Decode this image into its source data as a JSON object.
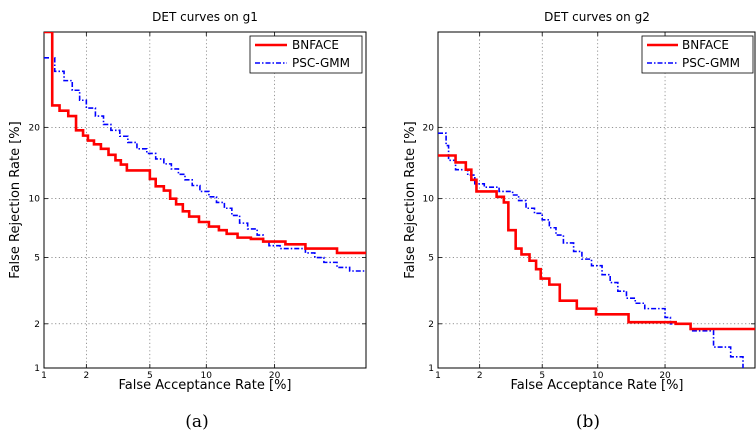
{
  "chart_data": [
    {
      "type": "line",
      "title": "DET curves on g1",
      "xlabel": "False Acceptance Rate [%]",
      "ylabel": "False Rejection Rate [%]",
      "xscale": "probit",
      "yscale": "probit",
      "xlim": [
        1,
        40
      ],
      "ylim": [
        1,
        40
      ],
      "xticks": [
        1,
        2,
        5,
        10,
        20
      ],
      "xtick_labels": [
        "1",
        "2",
        "5",
        "10",
        "20"
      ],
      "yticks": [
        1,
        2,
        5,
        10,
        20
      ],
      "ytick_labels": [
        "1",
        "2",
        "5",
        "10",
        "20"
      ],
      "grid": true,
      "legend_position": "top-right",
      "caption": "(a)",
      "series": [
        {
          "name": "BNFACE",
          "color": "#ff0000",
          "style": "solid",
          "points": [
            [
              1,
              40
            ],
            [
              1.15,
              40
            ],
            [
              1.15,
              24
            ],
            [
              1.3,
              24
            ],
            [
              1.3,
              23
            ],
            [
              1.5,
              23
            ],
            [
              1.5,
              22
            ],
            [
              1.7,
              22
            ],
            [
              1.7,
              19.5
            ],
            [
              1.9,
              19.5
            ],
            [
              1.9,
              18.6
            ],
            [
              2.05,
              18.6
            ],
            [
              2.05,
              17.8
            ],
            [
              2.25,
              17.8
            ],
            [
              2.25,
              17.2
            ],
            [
              2.5,
              17.2
            ],
            [
              2.5,
              16.5
            ],
            [
              2.8,
              16.5
            ],
            [
              2.8,
              15.6
            ],
            [
              3.1,
              15.6
            ],
            [
              3.1,
              14.8
            ],
            [
              3.35,
              14.8
            ],
            [
              3.35,
              14.2
            ],
            [
              3.65,
              14.2
            ],
            [
              3.65,
              13.4
            ],
            [
              4.1,
              13.4
            ],
            [
              4.1,
              13.4
            ],
            [
              5.0,
              13.4
            ],
            [
              5.0,
              12.3
            ],
            [
              5.4,
              12.3
            ],
            [
              5.4,
              11.4
            ],
            [
              6.0,
              11.4
            ],
            [
              6.0,
              10.9
            ],
            [
              6.5,
              10.9
            ],
            [
              6.5,
              10.0
            ],
            [
              7.0,
              10.0
            ],
            [
              7.0,
              9.4
            ],
            [
              7.6,
              9.4
            ],
            [
              7.6,
              8.7
            ],
            [
              8.2,
              8.7
            ],
            [
              8.2,
              8.2
            ],
            [
              9.2,
              8.2
            ],
            [
              9.2,
              7.7
            ],
            [
              10.3,
              7.7
            ],
            [
              10.3,
              7.3
            ],
            [
              11.5,
              7.3
            ],
            [
              11.5,
              7.0
            ],
            [
              12.5,
              7.0
            ],
            [
              12.5,
              6.7
            ],
            [
              14.0,
              6.7
            ],
            [
              14.0,
              6.4
            ],
            [
              16.0,
              6.4
            ],
            [
              16.0,
              6.3
            ],
            [
              18.0,
              6.3
            ],
            [
              18.0,
              6.1
            ],
            [
              22.0,
              6.1
            ],
            [
              22.0,
              5.9
            ],
            [
              26.0,
              5.9
            ],
            [
              26.0,
              5.6
            ],
            [
              33.0,
              5.6
            ],
            [
              33.0,
              5.3
            ],
            [
              40,
              5.3
            ]
          ]
        },
        {
          "name": "PSC-GMM",
          "color": "#0000ff",
          "style": "dashdot",
          "points": [
            [
              1,
              34
            ],
            [
              1.2,
              34
            ],
            [
              1.2,
              31
            ],
            [
              1.4,
              31
            ],
            [
              1.4,
              29
            ],
            [
              1.6,
              29
            ],
            [
              1.6,
              27
            ],
            [
              1.8,
              27
            ],
            [
              1.8,
              25
            ],
            [
              2.0,
              25
            ],
            [
              2.0,
              23.5
            ],
            [
              2.3,
              23.5
            ],
            [
              2.3,
              22
            ],
            [
              2.6,
              22
            ],
            [
              2.6,
              20.5
            ],
            [
              2.9,
              20.5
            ],
            [
              2.9,
              19.5
            ],
            [
              3.3,
              19.5
            ],
            [
              3.3,
              18.5
            ],
            [
              3.7,
              18.5
            ],
            [
              3.7,
              17.5
            ],
            [
              4.2,
              17.5
            ],
            [
              4.2,
              16.5
            ],
            [
              4.8,
              16.5
            ],
            [
              4.8,
              15.8
            ],
            [
              5.4,
              15.8
            ],
            [
              5.4,
              15.0
            ],
            [
              6.0,
              15.0
            ],
            [
              6.0,
              14.3
            ],
            [
              6.6,
              14.3
            ],
            [
              6.6,
              13.6
            ],
            [
              7.2,
              13.6
            ],
            [
              7.2,
              12.9
            ],
            [
              7.8,
              12.9
            ],
            [
              7.8,
              12.2
            ],
            [
              8.5,
              12.2
            ],
            [
              8.5,
              11.5
            ],
            [
              9.3,
              11.5
            ],
            [
              9.3,
              10.8
            ],
            [
              10.3,
              10.8
            ],
            [
              10.3,
              10.2
            ],
            [
              11.2,
              10.2
            ],
            [
              11.2,
              9.6
            ],
            [
              12.2,
              9.6
            ],
            [
              12.2,
              9.0
            ],
            [
              13.2,
              9.0
            ],
            [
              13.2,
              8.3
            ],
            [
              14.3,
              8.3
            ],
            [
              14.3,
              7.6
            ],
            [
              15.5,
              7.6
            ],
            [
              15.5,
              7.1
            ],
            [
              17.0,
              7.1
            ],
            [
              17.0,
              6.6
            ],
            [
              18.0,
              6.6
            ],
            [
              18.0,
              6.1
            ],
            [
              19.0,
              6.1
            ],
            [
              19.0,
              5.8
            ],
            [
              21.0,
              5.8
            ],
            [
              21.0,
              5.6
            ],
            [
              26.0,
              5.6
            ],
            [
              26.0,
              5.3
            ],
            [
              28.0,
              5.3
            ],
            [
              28.0,
              5.0
            ],
            [
              30.0,
              5.0
            ],
            [
              30.0,
              4.7
            ],
            [
              33.0,
              4.7
            ],
            [
              33.0,
              4.4
            ],
            [
              36.0,
              4.4
            ],
            [
              36.0,
              4.2
            ],
            [
              40,
              4.2
            ]
          ]
        }
      ]
    },
    {
      "type": "line",
      "title": "DET curves on g2",
      "xlabel": "False Acceptance Rate [%]",
      "ylabel": "False Rejection Rate [%]",
      "xscale": "probit",
      "yscale": "probit",
      "xlim": [
        1,
        40
      ],
      "ylim": [
        1,
        40
      ],
      "xticks": [
        1,
        2,
        5,
        10,
        20
      ],
      "xtick_labels": [
        "1",
        "2",
        "5",
        "10",
        "20"
      ],
      "yticks": [
        1,
        2,
        5,
        10,
        20
      ],
      "ytick_labels": [
        "1",
        "2",
        "5",
        "10",
        "20"
      ],
      "grid": true,
      "legend_position": "top-right",
      "caption": "(b)",
      "series": [
        {
          "name": "BNFACE",
          "color": "#ff0000",
          "style": "solid",
          "points": [
            [
              1,
              15.5
            ],
            [
              1.35,
              15.5
            ],
            [
              1.35,
              14.5
            ],
            [
              1.6,
              14.5
            ],
            [
              1.6,
              13.5
            ],
            [
              1.75,
              13.5
            ],
            [
              1.75,
              12.2
            ],
            [
              1.9,
              12.2
            ],
            [
              1.9,
              10.8
            ],
            [
              2.6,
              10.8
            ],
            [
              2.6,
              10.2
            ],
            [
              2.9,
              10.2
            ],
            [
              2.9,
              9.6
            ],
            [
              3.1,
              9.6
            ],
            [
              3.1,
              7.0
            ],
            [
              3.45,
              7.0
            ],
            [
              3.45,
              5.6
            ],
            [
              3.75,
              5.6
            ],
            [
              3.75,
              5.2
            ],
            [
              4.2,
              5.2
            ],
            [
              4.2,
              4.8
            ],
            [
              4.6,
              4.8
            ],
            [
              4.6,
              4.3
            ],
            [
              4.9,
              4.3
            ],
            [
              4.9,
              3.8
            ],
            [
              5.5,
              3.8
            ],
            [
              5.5,
              3.5
            ],
            [
              6.3,
              3.5
            ],
            [
              6.3,
              2.8
            ],
            [
              7.8,
              2.8
            ],
            [
              7.8,
              2.5
            ],
            [
              9.8,
              2.5
            ],
            [
              9.8,
              2.3
            ],
            [
              14.0,
              2.3
            ],
            [
              14.0,
              2.05
            ],
            [
              22.0,
              2.05
            ],
            [
              22.0,
              2.0
            ],
            [
              25.0,
              2.0
            ],
            [
              25.0,
              1.85
            ],
            [
              40,
              1.85
            ]
          ]
        },
        {
          "name": "PSC-GMM",
          "color": "#0000ff",
          "style": "dashdot",
          "points": [
            [
              1,
              19
            ],
            [
              1.15,
              19
            ],
            [
              1.15,
              17
            ],
            [
              1.2,
              17
            ],
            [
              1.2,
              14.8
            ],
            [
              1.35,
              14.8
            ],
            [
              1.35,
              13.5
            ],
            [
              1.65,
              13.5
            ],
            [
              1.65,
              12.8
            ],
            [
              1.85,
              12.8
            ],
            [
              1.85,
              11.7
            ],
            [
              2.15,
              11.7
            ],
            [
              2.15,
              11.3
            ],
            [
              2.7,
              11.3
            ],
            [
              2.7,
              10.8
            ],
            [
              3.3,
              10.8
            ],
            [
              3.3,
              10.4
            ],
            [
              3.6,
              10.4
            ],
            [
              3.6,
              9.8
            ],
            [
              4.0,
              9.8
            ],
            [
              4.0,
              9.0
            ],
            [
              4.5,
              9.0
            ],
            [
              4.5,
              8.5
            ],
            [
              5.0,
              8.5
            ],
            [
              5.0,
              7.9
            ],
            [
              5.5,
              7.9
            ],
            [
              5.5,
              7.2
            ],
            [
              6.0,
              7.2
            ],
            [
              6.0,
              6.6
            ],
            [
              6.6,
              6.6
            ],
            [
              6.6,
              6.0
            ],
            [
              7.5,
              6.0
            ],
            [
              7.5,
              5.4
            ],
            [
              8.3,
              5.4
            ],
            [
              8.3,
              4.9
            ],
            [
              9.3,
              4.9
            ],
            [
              9.3,
              4.5
            ],
            [
              10.5,
              4.5
            ],
            [
              10.5,
              4.0
            ],
            [
              11.5,
              4.0
            ],
            [
              11.5,
              3.6
            ],
            [
              12.5,
              3.6
            ],
            [
              12.5,
              3.2
            ],
            [
              13.7,
              3.2
            ],
            [
              13.7,
              2.9
            ],
            [
              15.0,
              2.9
            ],
            [
              15.0,
              2.7
            ],
            [
              16.5,
              2.7
            ],
            [
              16.5,
              2.5
            ],
            [
              20.0,
              2.5
            ],
            [
              20.0,
              2.2
            ],
            [
              21.0,
              2.2
            ],
            [
              21.0,
              2.0
            ],
            [
              25.0,
              2.0
            ],
            [
              25.0,
              1.8
            ],
            [
              30.0,
              1.8
            ],
            [
              30.0,
              1.4
            ],
            [
              34.0,
              1.4
            ],
            [
              34.0,
              1.2
            ],
            [
              37.0,
              1.2
            ],
            [
              37.0,
              1.0
            ]
          ]
        }
      ]
    }
  ]
}
